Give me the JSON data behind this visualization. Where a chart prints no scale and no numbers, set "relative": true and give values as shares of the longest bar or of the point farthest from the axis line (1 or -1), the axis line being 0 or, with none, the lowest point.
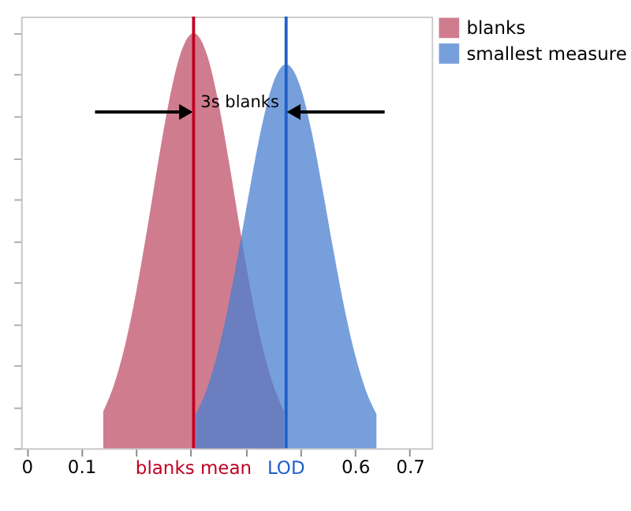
{
  "chart_data": {
    "type": "area",
    "relative": true,
    "xlim": [
      -0.01,
      0.74
    ],
    "xticks": [
      0,
      0.1,
      {
        "value": 0.2,
        "label": null
      },
      {
        "value": 0.3,
        "label": null
      },
      {
        "value": 0.4,
        "label": null
      },
      {
        "value": 0.5,
        "label": null
      },
      0.6,
      0.7
    ],
    "series": [
      {
        "name": "blanks",
        "color": "#c0506a",
        "x": [
          0.14,
          0.16,
          0.18,
          0.2,
          0.22,
          0.24,
          0.26,
          0.28,
          0.305,
          0.33,
          0.35,
          0.37,
          0.39,
          0.41,
          0.43,
          0.45,
          0.47
        ],
        "values": [
          0.089,
          0.154,
          0.249,
          0.375,
          0.526,
          0.687,
          0.835,
          0.946,
          1,
          0.946,
          0.835,
          0.687,
          0.526,
          0.375,
          0.249,
          0.154,
          0.089
        ]
      },
      {
        "name": "smallest measure",
        "color": "#4a7fd0",
        "x": [
          0.309,
          0.329,
          0.349,
          0.369,
          0.389,
          0.409,
          0.429,
          0.449,
          0.474,
          0.499,
          0.519,
          0.539,
          0.559,
          0.579,
          0.599,
          0.619,
          0.639
        ],
        "values": [
          0.082,
          0.142,
          0.23,
          0.347,
          0.487,
          0.635,
          0.772,
          0.875,
          0.925,
          0.875,
          0.772,
          0.635,
          0.487,
          0.347,
          0.23,
          0.142,
          0.082
        ]
      }
    ],
    "ref_lines": [
      {
        "axis": "x",
        "value": 0.305,
        "label": "blanks mean",
        "color": "#c00020"
      },
      {
        "axis": "x",
        "value": 0.474,
        "label": "LOD",
        "color": "#1f5fc8"
      }
    ],
    "annotations": [
      "3s blanks"
    ],
    "legend": "top right",
    "grid": false,
    "tick_labels": "x"
  }
}
